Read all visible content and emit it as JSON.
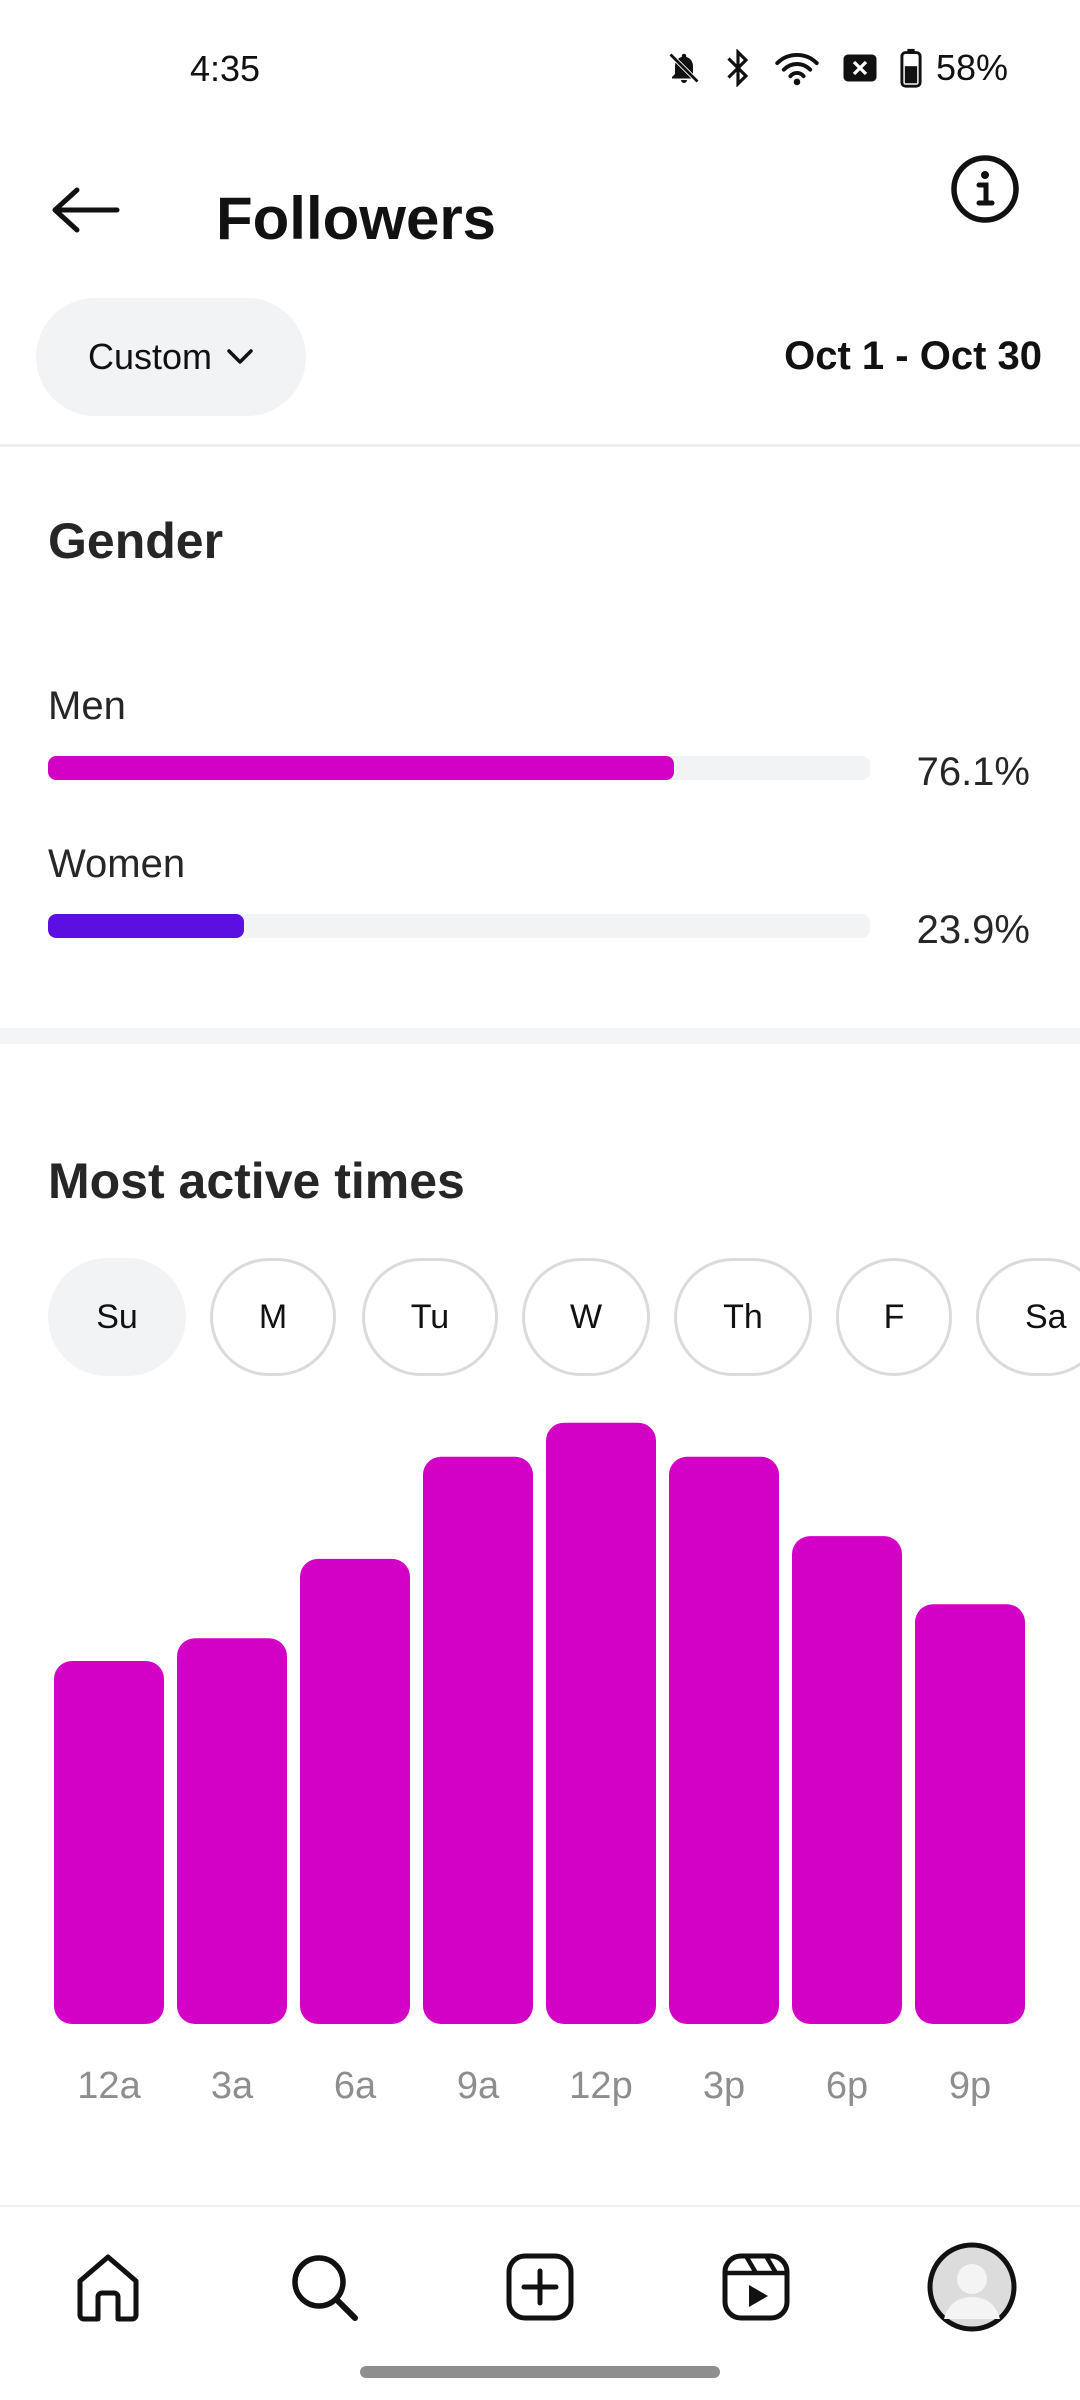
{
  "status_bar": {
    "time": "4:35",
    "battery_percent": "58%",
    "icons": [
      "bell-off-icon",
      "bluetooth-icon",
      "wifi-icon",
      "sim-off-icon",
      "battery-icon"
    ]
  },
  "header": {
    "title": "Followers",
    "back_icon": "arrow-left-icon",
    "info_icon": "info-icon"
  },
  "filter": {
    "label": "Custom",
    "dropdown_icon": "chevron-down-icon",
    "date_range": "Oct 1 - Oct 30"
  },
  "gender": {
    "title": "Gender",
    "items": [
      {
        "label": "Men",
        "value": "76.1%",
        "fraction": 0.761,
        "color": "#d300c5"
      },
      {
        "label": "Women",
        "value": "23.9%",
        "fraction": 0.239,
        "color": "#5b0fe0"
      }
    ]
  },
  "active_times": {
    "title": "Most active times",
    "days": [
      "Su",
      "M",
      "Tu",
      "W",
      "Th",
      "F",
      "Sa"
    ],
    "selected_day": "Su"
  },
  "chart_data": {
    "type": "bar",
    "categories": [
      "12a",
      "3a",
      "6a",
      "9a",
      "12p",
      "3p",
      "6p",
      "9p"
    ],
    "values": [
      64,
      68,
      82,
      100,
      106,
      100,
      86,
      74
    ],
    "color": "#d300c5",
    "title": "",
    "xlabel": "",
    "ylabel": "",
    "ylim": [
      0,
      110
    ],
    "grid": false
  },
  "bottom_nav": {
    "items": [
      "home-icon",
      "search-icon",
      "create-icon",
      "reels-icon",
      "profile-avatar"
    ]
  }
}
